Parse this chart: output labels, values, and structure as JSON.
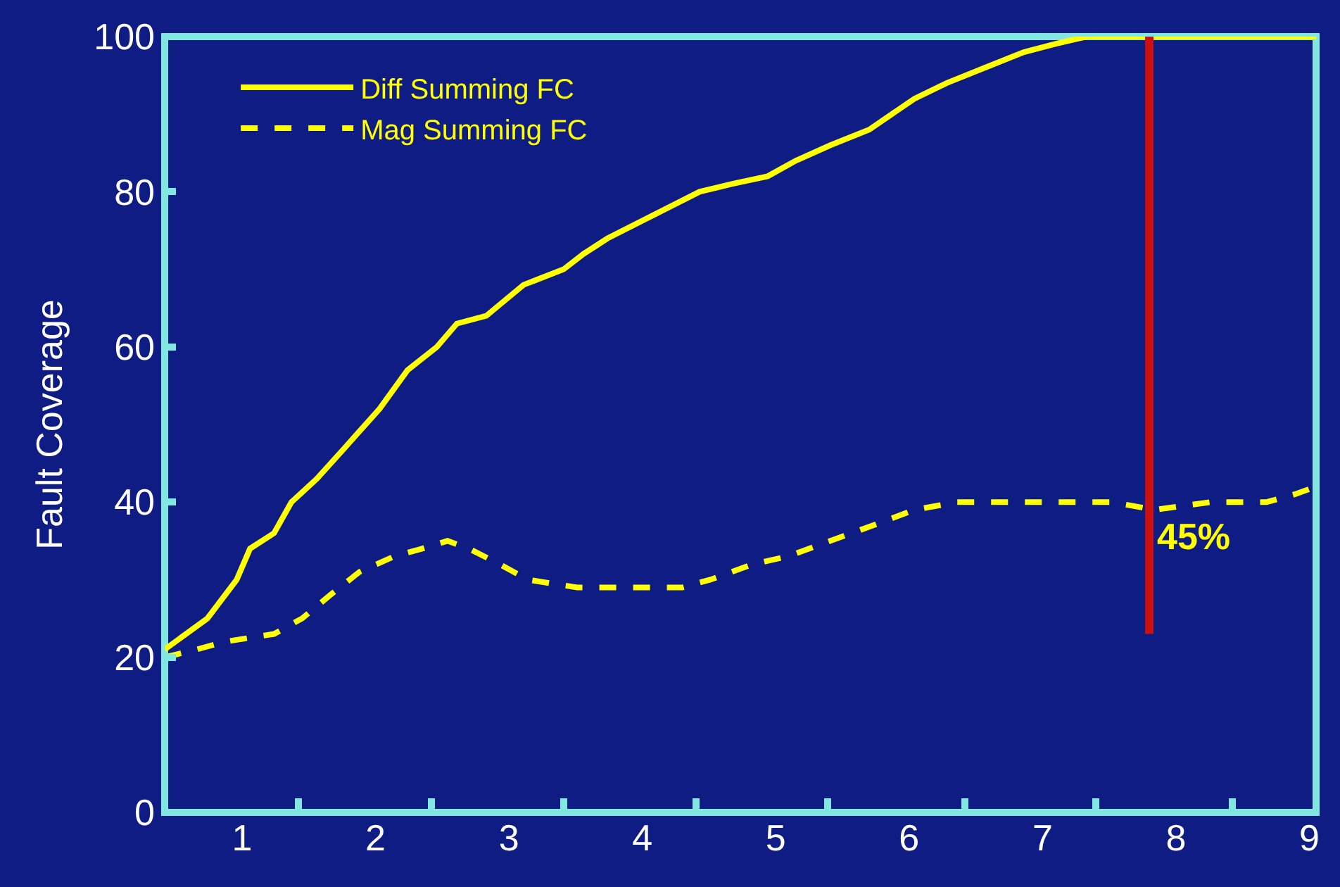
{
  "chart_data": {
    "type": "line",
    "ylabel": "Fault Coverage",
    "legend": "top left",
    "grid": false,
    "marker": "none",
    "xlim": [
      0.42,
      9.05
    ],
    "ylim": [
      0,
      100
    ],
    "xticks": [
      1,
      2,
      3,
      4,
      5,
      6,
      7,
      8,
      9,
      {
        "value": 1.42,
        "label": null
      },
      {
        "value": 2.42,
        "label": null
      },
      {
        "value": 3.41,
        "label": null
      },
      {
        "value": 4.4,
        "label": null
      },
      {
        "value": 5.39,
        "label": null
      },
      {
        "value": 6.42,
        "label": null
      },
      {
        "value": 7.4,
        "label": null
      },
      {
        "value": 8.42,
        "label": null
      }
    ],
    "yticks": [
      0,
      20,
      40,
      60,
      80,
      100
    ],
    "series": [
      {
        "name": "Diff Summing FC",
        "color": "#ffff00",
        "line_style": "solid",
        "x": [
          0.42,
          0.74,
          0.96,
          1.06,
          1.24,
          1.37,
          1.56,
          1.77,
          2.03,
          2.24,
          2.46,
          2.61,
          2.83,
          3.11,
          3.41,
          3.56,
          3.74,
          4.2,
          4.43,
          4.67,
          4.94,
          5.15,
          5.41,
          5.7,
          6.04,
          6.28,
          6.57,
          6.86,
          7.08,
          7.33,
          7.68,
          7.99,
          9.05
        ],
        "values": [
          21,
          25,
          30,
          34,
          36,
          40,
          43,
          47,
          52,
          57,
          60,
          63,
          64,
          68,
          70,
          72,
          74,
          78,
          80,
          81,
          82,
          84,
          86,
          88,
          92,
          94,
          96,
          98,
          99,
          100,
          100,
          100,
          100
        ]
      },
      {
        "name": "Mag Summing FC",
        "color": "#ffff00",
        "line_style": "dashed",
        "x": [
          0.42,
          0.66,
          0.87,
          1.24,
          1.45,
          1.66,
          1.88,
          2.14,
          2.35,
          2.54,
          2.7,
          2.93,
          3.14,
          3.51,
          3.93,
          4.3,
          4.51,
          4.83,
          5.09,
          5.41,
          5.73,
          6.04,
          6.36,
          6.99,
          7.52,
          7.84,
          8.26,
          8.68,
          8.89,
          9.05
        ],
        "values": [
          20,
          21,
          22,
          23,
          25,
          28,
          31,
          33,
          34,
          35,
          34,
          32,
          30,
          29,
          29,
          29,
          30,
          32,
          33,
          35,
          37,
          39,
          40,
          40,
          40,
          39,
          40,
          40,
          41,
          42
        ]
      },
      {
        "color": "#cc1010",
        "line_style": "solid",
        "x": [
          7.8,
          7.8
        ],
        "values": [
          23,
          100
        ]
      }
    ],
    "annotations": [
      "45%"
    ]
  }
}
